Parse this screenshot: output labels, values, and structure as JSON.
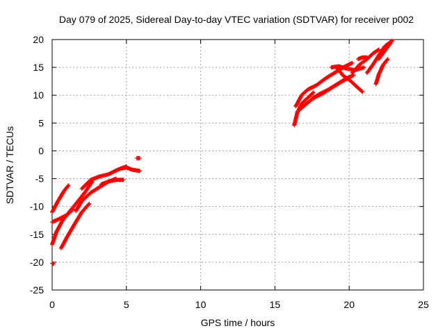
{
  "chart_data": {
    "type": "scatter",
    "title": "Day 079 of 2025, Sidereal Day-to-day VTEC variation (SDTVAR) for receiver p002",
    "xlabel": "GPS time / hours",
    "ylabel": "SDTVAR / TECUs",
    "xlim": [
      0,
      25
    ],
    "ylim": [
      -25,
      20
    ],
    "xticks": [
      0,
      5,
      10,
      15,
      20,
      25
    ],
    "yticks": [
      -25,
      -20,
      -15,
      -10,
      -5,
      0,
      5,
      10,
      15,
      20
    ],
    "grid": true,
    "marker": "plus",
    "color": "#ff0000",
    "tracks": [
      {
        "x": [
          0.0,
          0.4,
          0.8,
          1.1
        ],
        "y": [
          -11.0,
          -9.0,
          -7.2,
          -6.2
        ]
      },
      {
        "x": [
          0.0,
          0.5,
          1.0,
          1.6,
          2.2,
          2.7
        ],
        "y": [
          -12.8,
          -12.2,
          -11.5,
          -9.5,
          -7.5,
          -5.5
        ]
      },
      {
        "x": [
          0.0,
          0.3,
          0.7,
          1.0,
          1.4
        ],
        "y": [
          -16.8,
          -14.5,
          -12.5,
          -11.5,
          -10.5
        ]
      },
      {
        "x": [
          0.6,
          1.0,
          1.5,
          2.0,
          2.5
        ],
        "y": [
          -17.5,
          -15.5,
          -13.2,
          -11.0,
          -9.5
        ]
      },
      {
        "x": [
          1.6,
          2.0,
          2.6,
          3.2,
          3.8,
          4.3
        ],
        "y": [
          -10.8,
          -9.0,
          -7.5,
          -6.5,
          -5.5,
          -5.0
        ]
      },
      {
        "x": [
          2.0,
          2.6,
          3.2,
          3.8,
          4.4,
          5.0
        ],
        "y": [
          -6.8,
          -5.2,
          -4.6,
          -4.2,
          -3.4,
          -2.8
        ]
      },
      {
        "x": [
          3.3,
          3.8,
          4.3,
          4.8
        ],
        "y": [
          -6.0,
          -5.5,
          -5.2,
          -5.2
        ]
      },
      {
        "x": [
          4.6,
          5.0,
          5.4,
          5.9
        ],
        "y": [
          -3.2,
          -3.0,
          -3.4,
          -3.6
        ]
      },
      {
        "x": [
          5.7,
          5.9
        ],
        "y": [
          -1.3,
          -1.3
        ]
      },
      {
        "x": [
          0.0,
          0.1
        ],
        "y": [
          -20.2,
          -20.3
        ]
      },
      {
        "x": [
          16.3,
          16.5,
          16.8,
          17.2,
          17.6
        ],
        "y": [
          4.6,
          6.8,
          8.5,
          9.5,
          10.5
        ]
      },
      {
        "x": [
          16.4,
          16.8,
          17.2,
          17.8,
          18.4,
          19.0,
          19.6,
          20.2
        ],
        "y": [
          8.0,
          10.0,
          11.0,
          11.8,
          13.0,
          14.0,
          15.0,
          15.8
        ]
      },
      {
        "x": [
          16.5,
          17.0,
          17.6,
          18.2,
          18.8,
          19.4,
          20.0
        ],
        "y": [
          7.0,
          8.2,
          9.5,
          10.3,
          11.3,
          12.3,
          13.2
        ]
      },
      {
        "x": [
          17.5,
          18.0,
          18.6,
          19.2,
          19.8,
          20.3
        ],
        "y": [
          9.4,
          10.2,
          11.0,
          12.0,
          13.0,
          13.6
        ]
      },
      {
        "x": [
          18.8,
          19.3,
          19.8,
          20.4,
          21.0
        ],
        "y": [
          15.0,
          15.2,
          14.8,
          14.5,
          15.0
        ]
      },
      {
        "x": [
          19.2,
          19.6,
          20.0,
          20.4,
          20.9
        ],
        "y": [
          14.8,
          13.5,
          12.8,
          11.8,
          10.6
        ]
      },
      {
        "x": [
          20.2,
          20.7,
          21.2,
          21.6,
          22.0
        ],
        "y": [
          14.0,
          15.5,
          16.5,
          17.5,
          18.2
        ]
      },
      {
        "x": [
          21.2,
          21.6,
          22.0,
          22.4,
          22.9
        ],
        "y": [
          14.0,
          15.5,
          17.2,
          18.8,
          19.8
        ]
      },
      {
        "x": [
          21.8,
          22.0,
          22.3,
          22.6
        ],
        "y": [
          12.0,
          13.8,
          15.5,
          16.5
        ]
      },
      {
        "x": [
          22.0,
          22.4,
          22.8
        ],
        "y": [
          16.5,
          18.0,
          19.4
        ]
      },
      {
        "x": [
          20.6,
          20.9,
          21.2
        ],
        "y": [
          16.5,
          16.8,
          16.8
        ]
      }
    ]
  }
}
